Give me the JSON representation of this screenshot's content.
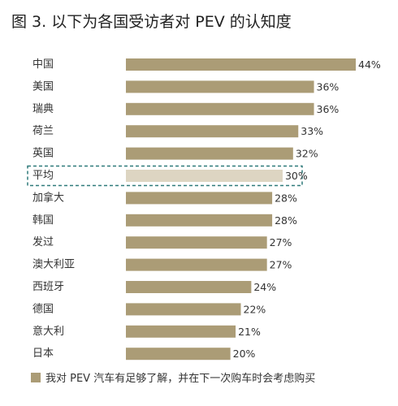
{
  "chart_data": {
    "type": "bar",
    "orientation": "horizontal",
    "title": "图 3. 以下为各国受访者对 PEV 的认知度",
    "categories": [
      "中国",
      "美国",
      "瑞典",
      "荷兰",
      "英国",
      "平均",
      "加拿大",
      "韩国",
      "发过",
      "澳大利亚",
      "西班牙",
      "德国",
      "意大利",
      "日本"
    ],
    "values": [
      44,
      36,
      36,
      33,
      32,
      30,
      28,
      28,
      27,
      27,
      24,
      22,
      21,
      20
    ],
    "value_labels": [
      "44%",
      "36%",
      "36%",
      "33%",
      "32%",
      "30%",
      "28%",
      "28%",
      "27%",
      "27%",
      "24%",
      "22%",
      "21%",
      "20%"
    ],
    "highlighted_category": "平均",
    "xlim": [
      0,
      44
    ],
    "grid": false,
    "legend": {
      "placement": "bottom-left",
      "label": "我对 PEV 汽车有足够了解，并在下一次购车时会考虑购买"
    },
    "colors": {
      "bar": "#ab9c76",
      "highlight_bar": "#ddd5c2",
      "highlight_border": "#2f7a7a",
      "text": "#333333"
    }
  }
}
